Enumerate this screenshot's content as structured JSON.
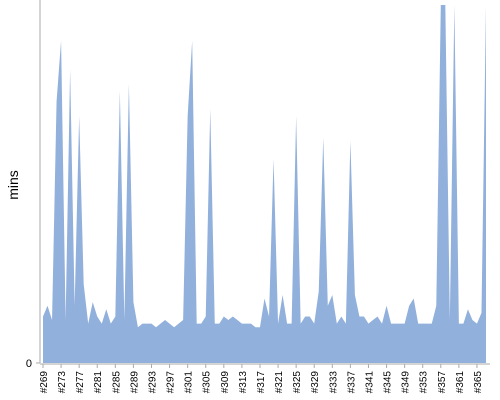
{
  "chart_data": {
    "type": "area",
    "y_label": "mins",
    "color": "#92b0dc",
    "categories": [
      "#269",
      null,
      null,
      null,
      "#273",
      null,
      null,
      null,
      "#277",
      null,
      null,
      null,
      "#281",
      null,
      null,
      null,
      "#285",
      null,
      null,
      null,
      "#289",
      null,
      null,
      null,
      "#293",
      null,
      null,
      null,
      "#297",
      null,
      null,
      null,
      "#301",
      null,
      null,
      null,
      "#305",
      null,
      null,
      null,
      "#309",
      null,
      null,
      null,
      "#313",
      null,
      null,
      null,
      "#317",
      null,
      null,
      null,
      "#321",
      null,
      null,
      null,
      "#325",
      null,
      null,
      null,
      "#329",
      null,
      null,
      null,
      "#333",
      null,
      null,
      null,
      "#337",
      null,
      null,
      null,
      "#341",
      null,
      null,
      null,
      "#345",
      null,
      null,
      null,
      "#349",
      null,
      null,
      null,
      "#353",
      null,
      null,
      null,
      "#357",
      null,
      null,
      null,
      "#361",
      null,
      null,
      null,
      "#365",
      null,
      null
    ],
    "values": [
      13,
      16,
      12,
      73,
      90,
      12,
      82,
      16,
      69,
      22,
      11,
      17,
      13,
      11,
      15,
      11,
      13,
      76,
      12,
      78,
      17,
      10,
      11,
      11,
      11,
      10,
      11,
      12,
      11,
      10,
      11,
      12,
      69,
      90,
      11,
      11,
      13,
      71,
      11,
      11,
      13,
      12,
      13,
      12,
      11,
      11,
      11,
      10,
      10,
      18,
      13,
      57,
      11,
      19,
      11,
      11,
      69,
      11,
      13,
      13,
      11,
      20,
      63,
      16,
      19,
      11,
      13,
      11,
      62,
      19,
      13,
      13,
      11,
      12,
      13,
      11,
      16,
      11,
      11,
      11,
      11,
      16,
      18,
      11,
      11,
      11,
      11,
      16,
      100,
      100,
      12,
      100,
      11,
      11,
      15,
      12,
      11,
      14,
      100
    ],
    "ylim": [
      0,
      100
    ],
    "yticks": [
      0
    ]
  }
}
